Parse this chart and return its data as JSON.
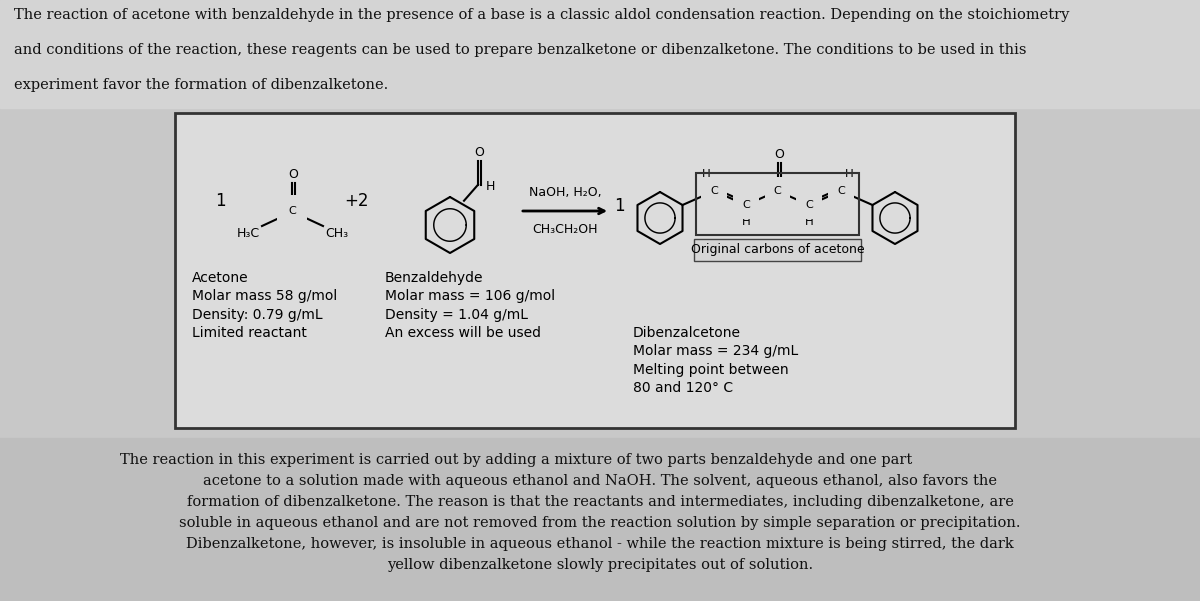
{
  "bg_top_color": "#d2d2d2",
  "bg_mid_color": "#c8c8c8",
  "bg_bot_color": "#b8b8b8",
  "box_bg": "#dcdcdc",
  "box_border": "#333333",
  "text_color": "#111111",
  "top_paragraph_lines": [
    "The reaction of acetone with benzaldehyde in the presence of a base is a classic aldol condensation reaction. Depending on the stoichiometry",
    "and conditions of the reaction, these reagents can be used to prepare benzalketone or dibenzalketone. The conditions to be used in this",
    "experiment favor the formation of dibenzalketone."
  ],
  "bottom_paragraph_lines": [
    "The reaction in this experiment is carried out by adding a mixture of two parts benzaldehyde and one part",
    "acetone to a solution made with aqueous ethanol and NaOH. The solvent, aqueous ethanol, also favors the",
    "formation of dibenzalketone. The reason is that the reactants and intermediates, including dibenzalketone, are",
    "soluble in aqueous ethanol and are not removed from the reaction solution by simple separation or precipitation.",
    "Dibenzalketone, however, is insoluble in aqueous ethanol - while the reaction mixture is being stirred, the dark",
    "yellow dibenzalketone slowly precipitates out of solution."
  ],
  "acetone_label_lines": [
    "Acetone",
    "Molar mass 58 g/mol",
    "Density: 0.79 g/mL",
    "Limited reactant"
  ],
  "benzaldehyde_label_lines": [
    "Benzaldehyde",
    "Molar mass = 106 g/mol",
    "Density = 1.04 g/mL",
    "An excess will be used"
  ],
  "product_box_label": "Original carbons of acetone",
  "dibenzalcetone_label_lines": [
    "Dibenzalcetone",
    "Molar mass = 234 g/mL",
    "Melting point between",
    "80 and 120° C"
  ],
  "reaction_cond_top": "NaOH, H₂O,",
  "reaction_cond_bot": "CH₃CH₂OH",
  "font_size_body": 10.5,
  "font_size_label": 10.0,
  "font_size_small": 8.5
}
